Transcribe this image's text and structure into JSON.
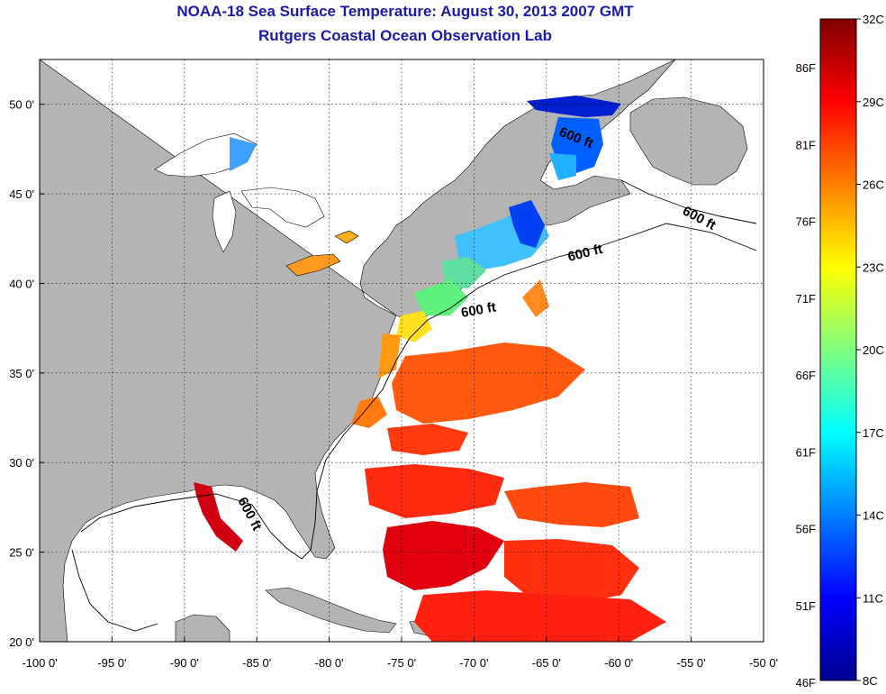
{
  "title": "NOAA-18 Sea Surface Temperature:  August 30, 2013 2007 GMT",
  "subtitle": "Rutgers Coastal Ocean Observation Lab",
  "map": {
    "x_ticks": [
      "-100 0'",
      "-95 0'",
      "-90 0'",
      "-85 0'",
      "-80 0'",
      "-75 0'",
      "-70 0'",
      "-65 0'",
      "-60 0'",
      "-55 0'",
      "-50 0'"
    ],
    "y_ticks": [
      "50 0'",
      "45 0'",
      "40 0'",
      "35 0'",
      "30 0'",
      "25 0'",
      "20 0'"
    ],
    "y_tick_values": [
      50,
      45,
      40,
      35,
      30,
      25,
      20
    ],
    "lon_range": [
      -100,
      -50
    ],
    "lat_range": [
      20,
      52.5
    ],
    "isobath_label": "600 ft",
    "land_color": "#b4b4b4",
    "no_data_color": "#ffffff",
    "grid": "dotted"
  },
  "colorbar": {
    "celsius_labels": [
      "32C",
      "29C",
      "26C",
      "23C",
      "20C",
      "17C",
      "14C",
      "11C",
      "8C"
    ],
    "fahrenheit_labels": [
      "86F",
      "81F",
      "76F",
      "71F",
      "66F",
      "61F",
      "56F",
      "51F",
      "46F"
    ],
    "range_c": [
      8,
      32
    ],
    "colormap": "jet"
  }
}
